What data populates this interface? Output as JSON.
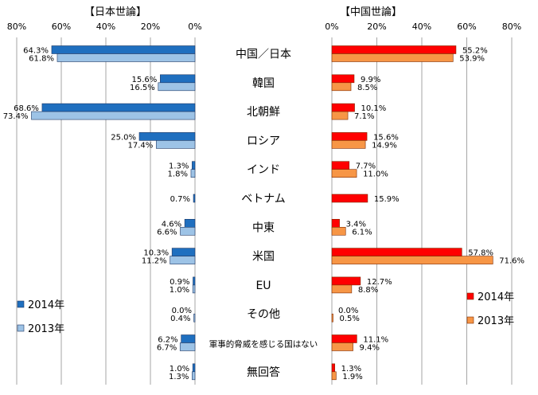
{
  "chart_data": [
    {
      "type": "bar",
      "title": "【日本世論】",
      "orientation": "horizontal",
      "direction": "right-to-left",
      "xlim": [
        0,
        80
      ],
      "tick_labels": [
        "80%",
        "60%",
        "40%",
        "20%",
        "0%"
      ],
      "grid": true,
      "legend_position": "bottom-left",
      "categories": [
        "中国／日本",
        "韓国",
        "北朝鮮",
        "ロシア",
        "インド",
        "ベトナム",
        "中東",
        "米国",
        "EU",
        "その他",
        "軍事的脅威を感じる国はない",
        "無回答"
      ],
      "series": [
        {
          "name": "2014年",
          "color": "#1f6fbf",
          "values": [
            64.3,
            15.6,
            68.6,
            25.0,
            1.3,
            0.7,
            4.6,
            10.3,
            0.9,
            0.0,
            6.2,
            1.0
          ],
          "labels": [
            "64.3%",
            "15.6%",
            "68.6%",
            "25.0%",
            "1.3%",
            "0.7%",
            "4.6%",
            "10.3%",
            "0.9%",
            "0.0%",
            "6.2%",
            "1.0%"
          ]
        },
        {
          "name": "2013年",
          "color": "#9dc3e6",
          "values": [
            61.8,
            16.5,
            73.4,
            17.4,
            1.8,
            null,
            6.6,
            11.2,
            1.0,
            0.4,
            6.7,
            1.3
          ],
          "labels": [
            "61.8%",
            "16.5%",
            "73.4%",
            "17.4%",
            "1.8%",
            null,
            "6.6%",
            "11.2%",
            "1.0%",
            "0.4%",
            "6.7%",
            "1.3%"
          ]
        }
      ]
    },
    {
      "type": "bar",
      "title": "【中国世論】",
      "orientation": "horizontal",
      "direction": "left-to-right",
      "xlim": [
        0,
        80
      ],
      "tick_labels": [
        "0%",
        "20%",
        "40%",
        "60%",
        "80%"
      ],
      "grid": true,
      "legend_position": "bottom-right",
      "categories": [
        "中国／日本",
        "韓国",
        "北朝鮮",
        "ロシア",
        "インド",
        "ベトナム",
        "中東",
        "米国",
        "EU",
        "その他",
        "軍事的脅威を感じる国はない",
        "無回答"
      ],
      "series": [
        {
          "name": "2014年",
          "color": "#ff0000",
          "values": [
            55.2,
            9.9,
            10.1,
            15.6,
            7.7,
            15.9,
            3.4,
            57.8,
            12.7,
            0.0,
            11.1,
            1.3
          ],
          "labels": [
            "55.2%",
            "9.9%",
            "10.1%",
            "15.6%",
            "7.7%",
            "15.9%",
            "3.4%",
            "57.8%",
            "12.7%",
            "0.0%",
            "11.1%",
            "1.3%"
          ]
        },
        {
          "name": "2013年",
          "color": "#f79646",
          "values": [
            53.9,
            8.5,
            7.1,
            14.9,
            11.0,
            null,
            6.1,
            71.6,
            8.8,
            0.5,
            9.4,
            1.9
          ],
          "labels": [
            "53.9%",
            "8.5%",
            "7.1%",
            "14.9%",
            "11.0%",
            null,
            "6.1%",
            "71.6%",
            "8.8%",
            "0.5%",
            "9.4%",
            "1.9%"
          ]
        }
      ]
    }
  ]
}
